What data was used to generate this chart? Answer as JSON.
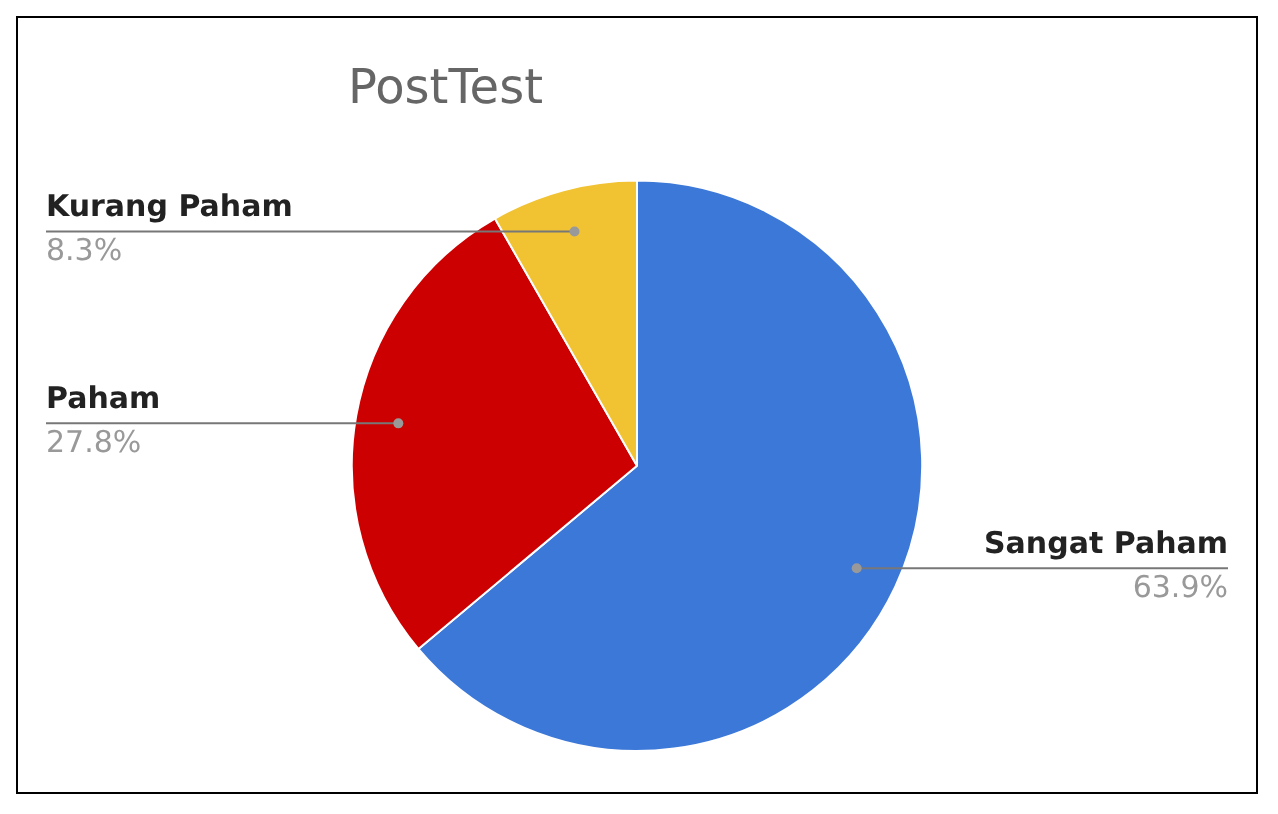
{
  "chart_data": {
    "type": "pie",
    "title": "PostTest",
    "categories": [
      "Sangat Paham",
      "Paham",
      "Kurang Paham"
    ],
    "values": [
      63.9,
      27.8,
      8.3
    ],
    "colors": [
      "#3c78d8",
      "#cc0000",
      "#f1c232"
    ],
    "value_labels": [
      "63.9%",
      "27.8%",
      "8.3%"
    ],
    "legend": false
  }
}
